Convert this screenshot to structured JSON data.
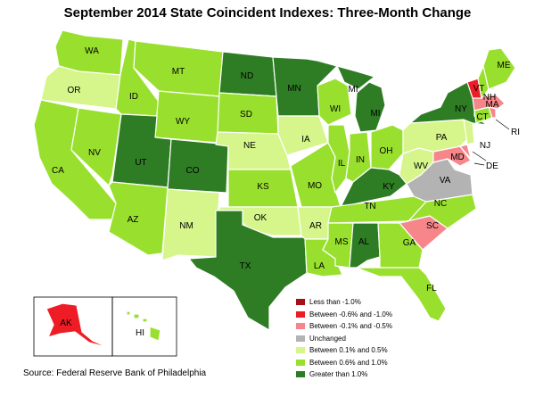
{
  "title": "September 2014 State Coincident Indexes: Three-Month Change",
  "source": "Source: Federal Reserve Bank of Philadelphia",
  "colors": {
    "lt_neg1": "#a50f15",
    "neg06_neg1": "#ee1c25",
    "neg01_neg05": "#f6868a",
    "unchanged": "#b3b3b3",
    "p01_05": "#d6f58b",
    "p06_10": "#99e02e",
    "gt_1": "#2e7d24",
    "border": "#ffffff"
  },
  "legend": [
    {
      "label": "Less than -1.0%",
      "color_key": "lt_neg1"
    },
    {
      "label": "Between -0.6% and -1.0%",
      "color_key": "neg06_neg1"
    },
    {
      "label": "Between -0.1% and -0.5%",
      "color_key": "neg01_neg05"
    },
    {
      "label": "Unchanged",
      "color_key": "unchanged"
    },
    {
      "label": "Between 0.1% and 0.5%",
      "color_key": "p01_05"
    },
    {
      "label": "Between 0.6% and 1.0%",
      "color_key": "p06_10"
    },
    {
      "label": "Greater than 1.0%",
      "color_key": "gt_1"
    }
  ],
  "states": [
    {
      "abbr": "WA",
      "category": "p06_10"
    },
    {
      "abbr": "OR",
      "category": "p01_05"
    },
    {
      "abbr": "CA",
      "category": "p06_10"
    },
    {
      "abbr": "NV",
      "category": "p06_10"
    },
    {
      "abbr": "ID",
      "category": "p06_10"
    },
    {
      "abbr": "MT",
      "category": "p06_10"
    },
    {
      "abbr": "WY",
      "category": "p06_10"
    },
    {
      "abbr": "UT",
      "category": "gt_1"
    },
    {
      "abbr": "AZ",
      "category": "p06_10"
    },
    {
      "abbr": "CO",
      "category": "gt_1"
    },
    {
      "abbr": "NM",
      "category": "p01_05"
    },
    {
      "abbr": "ND",
      "category": "gt_1"
    },
    {
      "abbr": "SD",
      "category": "p06_10"
    },
    {
      "abbr": "NE",
      "category": "p01_05"
    },
    {
      "abbr": "KS",
      "category": "p06_10"
    },
    {
      "abbr": "OK",
      "category": "p01_05"
    },
    {
      "abbr": "TX",
      "category": "gt_1"
    },
    {
      "abbr": "MN",
      "category": "gt_1"
    },
    {
      "abbr": "IA",
      "category": "p01_05"
    },
    {
      "abbr": "MO",
      "category": "p06_10"
    },
    {
      "abbr": "AR",
      "category": "p01_05"
    },
    {
      "abbr": "LA",
      "category": "p06_10"
    },
    {
      "abbr": "WI",
      "category": "p06_10"
    },
    {
      "abbr": "IL",
      "category": "p06_10"
    },
    {
      "abbr": "MI",
      "category": "gt_1"
    },
    {
      "abbr": "IN",
      "category": "p06_10"
    },
    {
      "abbr": "OH",
      "category": "p06_10"
    },
    {
      "abbr": "KY",
      "category": "gt_1"
    },
    {
      "abbr": "TN",
      "category": "p06_10"
    },
    {
      "abbr": "MS",
      "category": "p06_10"
    },
    {
      "abbr": "AL",
      "category": "gt_1"
    },
    {
      "abbr": "GA",
      "category": "p06_10"
    },
    {
      "abbr": "FL",
      "category": "p06_10"
    },
    {
      "abbr": "SC",
      "category": "neg01_neg05"
    },
    {
      "abbr": "NC",
      "category": "p06_10"
    },
    {
      "abbr": "VA",
      "category": "unchanged"
    },
    {
      "abbr": "WV",
      "category": "p01_05"
    },
    {
      "abbr": "MD",
      "category": "neg01_neg05"
    },
    {
      "abbr": "DE",
      "category": "neg01_neg05"
    },
    {
      "abbr": "PA",
      "category": "p01_05"
    },
    {
      "abbr": "NJ",
      "category": "p01_05"
    },
    {
      "abbr": "NY",
      "category": "gt_1"
    },
    {
      "abbr": "CT",
      "category": "p06_10"
    },
    {
      "abbr": "RI",
      "category": "neg01_neg05"
    },
    {
      "abbr": "MA",
      "category": "neg01_neg05"
    },
    {
      "abbr": "VT",
      "category": "neg06_neg1"
    },
    {
      "abbr": "NH",
      "category": "p06_10"
    },
    {
      "abbr": "ME",
      "category": "p06_10"
    },
    {
      "abbr": "AK",
      "category": "neg06_neg1"
    },
    {
      "abbr": "HI",
      "category": "p06_10"
    }
  ]
}
